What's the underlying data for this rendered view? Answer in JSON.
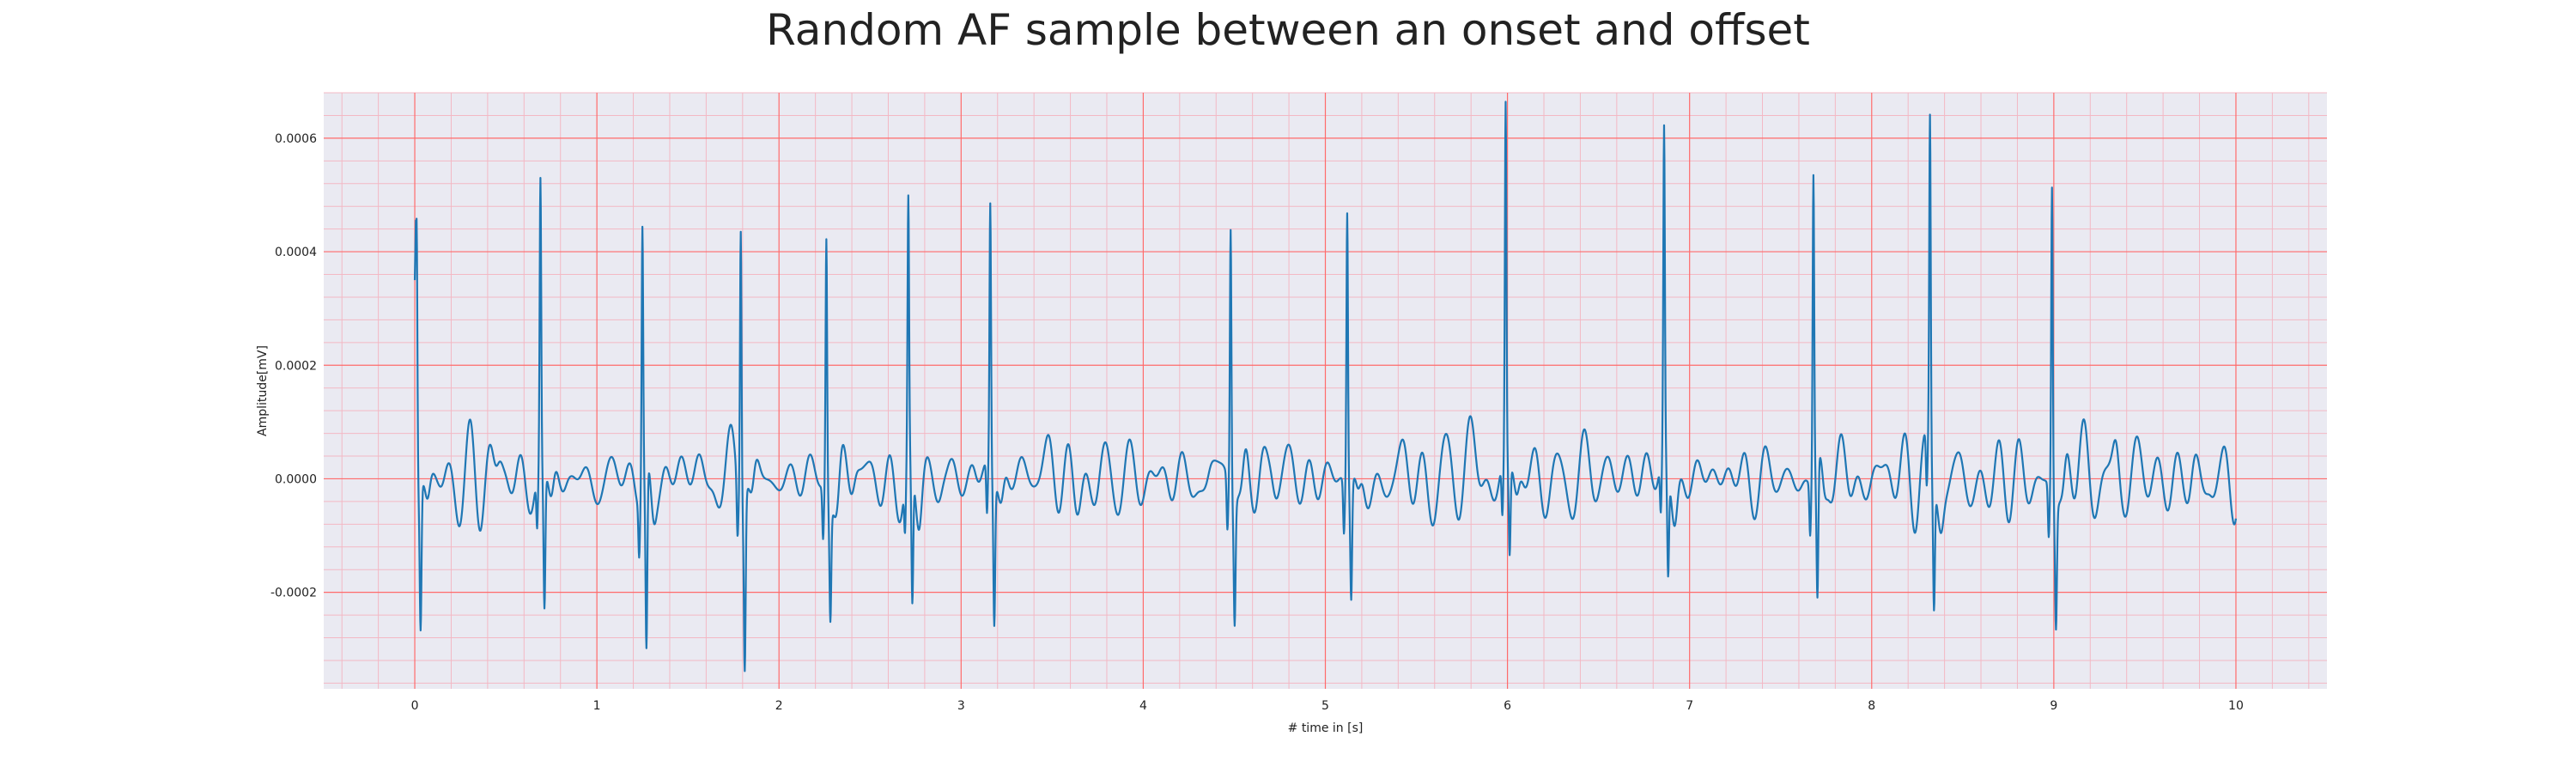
{
  "chart_data": {
    "type": "line",
    "title": "Random AF sample between an onset and offset",
    "xlabel": "# time in [s]",
    "ylabel": "Amplitude[mV]",
    "xlim": [
      -0.5,
      10.5
    ],
    "ylim": [
      -0.00037,
      0.00068
    ],
    "x_ticks": [
      0,
      1,
      2,
      3,
      4,
      5,
      6,
      7,
      8,
      9,
      10
    ],
    "x_tick_labels": [
      "0",
      "1",
      "2",
      "3",
      "4",
      "5",
      "6",
      "7",
      "8",
      "9",
      "10"
    ],
    "y_ticks": [
      -0.0002,
      0.0,
      0.0002,
      0.0004,
      0.0006
    ],
    "y_tick_labels": [
      "-0.0002",
      "0.0000",
      "0.0002",
      "0.0004",
      "0.0006"
    ],
    "grid": true,
    "colors": {
      "line": "#1f77b4",
      "major_grid": "#ff6b6b",
      "minor_grid": "#f3b8c4",
      "plot_bg": "#eaeaf2"
    },
    "series": [
      {
        "peaks": [
          {
            "t": 0.01,
            "max": 0.00049,
            "min": -0.00025
          },
          {
            "t": 0.69,
            "max": 0.00051,
            "min": -0.00024
          },
          {
            "t": 1.25,
            "max": 0.00047,
            "min": -0.00032
          },
          {
            "t": 1.79,
            "max": 0.00049,
            "min": -0.0003
          },
          {
            "t": 2.26,
            "max": 0.00045,
            "min": -0.0002
          },
          {
            "t": 2.71,
            "max": 0.00046,
            "min": -0.00024
          },
          {
            "t": 3.16,
            "max": 0.00047,
            "min": -0.00025
          },
          {
            "t": 4.48,
            "max": 0.00047,
            "min": -0.00021
          },
          {
            "t": 5.12,
            "max": 0.00049,
            "min": -0.0002
          },
          {
            "t": 5.99,
            "max": 0.00063,
            "min": -0.00016
          },
          {
            "t": 6.86,
            "max": 0.00057,
            "min": -0.00019
          },
          {
            "t": 7.68,
            "max": 0.00054,
            "min": -0.00024
          },
          {
            "t": 8.32,
            "max": 0.0006,
            "min": -0.00022
          },
          {
            "t": 8.99,
            "max": 0.00055,
            "min": -0.00021
          }
        ],
        "start": {
          "t": 0.0,
          "v": 0.00035
        },
        "end": {
          "t": 10.0,
          "v": 1e-05
        }
      }
    ]
  }
}
